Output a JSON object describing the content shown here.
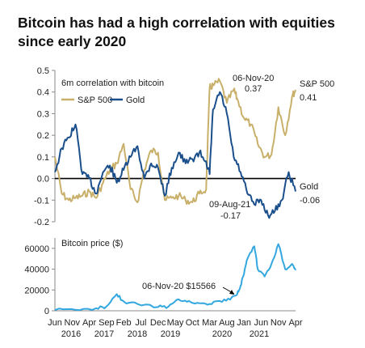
{
  "title": "Bitcoin has had a high correlation with equities since early 2020",
  "colors": {
    "sp500": "#c9b06a",
    "gold": "#1b4f8c",
    "bitcoin": "#33a7df",
    "zero": "#000000"
  },
  "chart_data": [
    {
      "type": "line",
      "subtitle": "6m correlation with bitcoin",
      "ylim": [
        -0.2,
        0.5
      ],
      "yticks": [
        "0.5",
        "0.4",
        "0.3",
        "0.2",
        "0.1",
        "0.0",
        "-0.1",
        "-0.2"
      ],
      "grid": false,
      "legend_position": "top-left",
      "series": [
        {
          "name": "S&P 500",
          "x": [
            "2016-06",
            "2016-08",
            "2016-10",
            "2016-12",
            "2017-02",
            "2017-04",
            "2017-06",
            "2017-08",
            "2017-10",
            "2017-12",
            "2018-02",
            "2018-04",
            "2018-06",
            "2018-08",
            "2018-10",
            "2018-12",
            "2019-02",
            "2019-04",
            "2019-06",
            "2019-08",
            "2019-10",
            "2019-12",
            "2020-02",
            "2020-03",
            "2020-04",
            "2020-06",
            "2020-08",
            "2020-10",
            "2020-11",
            "2021-01",
            "2021-03",
            "2021-05",
            "2021-07",
            "2021-09",
            "2021-11",
            "2022-01",
            "2022-03",
            "2022-04"
          ],
          "values": [
            0.1,
            -0.07,
            -0.1,
            -0.09,
            -0.08,
            -0.06,
            -0.09,
            -0.02,
            0.04,
            0.07,
            0.16,
            -0.05,
            -0.11,
            0.04,
            0.13,
            0.12,
            -0.1,
            -0.09,
            -0.08,
            -0.1,
            -0.11,
            -0.07,
            -0.05,
            0.42,
            0.43,
            0.45,
            0.35,
            0.41,
            0.37,
            0.28,
            0.25,
            0.16,
            0.1,
            0.11,
            0.33,
            0.2,
            0.38,
            0.41
          ]
        },
        {
          "name": "Gold",
          "x": [
            "2016-06",
            "2016-08",
            "2016-10",
            "2016-12",
            "2017-02",
            "2017-04",
            "2017-06",
            "2017-08",
            "2017-10",
            "2017-12",
            "2018-02",
            "2018-04",
            "2018-06",
            "2018-08",
            "2018-10",
            "2018-12",
            "2019-02",
            "2019-04",
            "2019-06",
            "2019-08",
            "2019-10",
            "2019-12",
            "2020-02",
            "2020-03",
            "2020-04",
            "2020-06",
            "2020-08",
            "2020-10",
            "2020-12",
            "2021-02",
            "2021-04",
            "2021-06",
            "2021-08",
            "2021-10",
            "2021-12",
            "2022-02",
            "2022-04"
          ],
          "values": [
            0.03,
            0.14,
            0.19,
            0.25,
            0.02,
            0.0,
            -0.07,
            0.03,
            0.06,
            -0.02,
            0.04,
            0.1,
            0.15,
            0.0,
            0.07,
            0.05,
            -0.08,
            0.05,
            0.12,
            0.07,
            0.09,
            0.12,
            0.08,
            0.02,
            0.32,
            0.4,
            0.3,
            0.1,
            0.03,
            -0.07,
            -0.12,
            -0.1,
            -0.17,
            -0.15,
            -0.1,
            0.03,
            -0.06
          ]
        }
      ],
      "annotations": [
        {
          "text_date": "06-Nov-20",
          "text_value": "0.37"
        },
        {
          "text_date": "09-Aug-21",
          "text_value": "-0.17"
        },
        {
          "text_label": "S&P 500",
          "text_value": "0.41"
        },
        {
          "text_label": "Gold",
          "text_value": "-0.06"
        }
      ]
    },
    {
      "type": "line",
      "subtitle": "Bitcoin price ($)",
      "ylim": [
        0,
        70000
      ],
      "yticks": [
        "60000",
        "40000",
        "20000",
        "0"
      ],
      "grid": false,
      "series": [
        {
          "name": "Bitcoin price ($)",
          "x": [
            "2016-06",
            "2016-12",
            "2017-06",
            "2017-09",
            "2017-12",
            "2018-02",
            "2018-06",
            "2018-12",
            "2019-03",
            "2019-06",
            "2019-09",
            "2019-12",
            "2020-03",
            "2020-06",
            "2020-09",
            "2020-11",
            "2020-12",
            "2021-01",
            "2021-02",
            "2021-04",
            "2021-05",
            "2021-07",
            "2021-09",
            "2021-11",
            "2022-01",
            "2022-03",
            "2022-04"
          ],
          "values": [
            600,
            900,
            2500,
            4200,
            16000,
            9000,
            6500,
            3600,
            4000,
            11000,
            9500,
            7300,
            6500,
            9400,
            10700,
            15566,
            24000,
            35000,
            50000,
            62000,
            40000,
            33000,
            45000,
            64000,
            40000,
            45000,
            39000
          ]
        }
      ],
      "annotations": [
        {
          "text": "06-Nov-20  $15566"
        }
      ]
    }
  ],
  "x_axis": {
    "months": [
      "Jun",
      "Nov",
      "Apr",
      "Sep",
      "Feb",
      "Jul",
      "Dec",
      "May",
      "Oct",
      "Mar",
      "Aug",
      "Jan",
      "Jun",
      "Nov",
      "Apr"
    ],
    "years": [
      "2016",
      "2017",
      "2018",
      "2019",
      "2020",
      "2021"
    ]
  }
}
